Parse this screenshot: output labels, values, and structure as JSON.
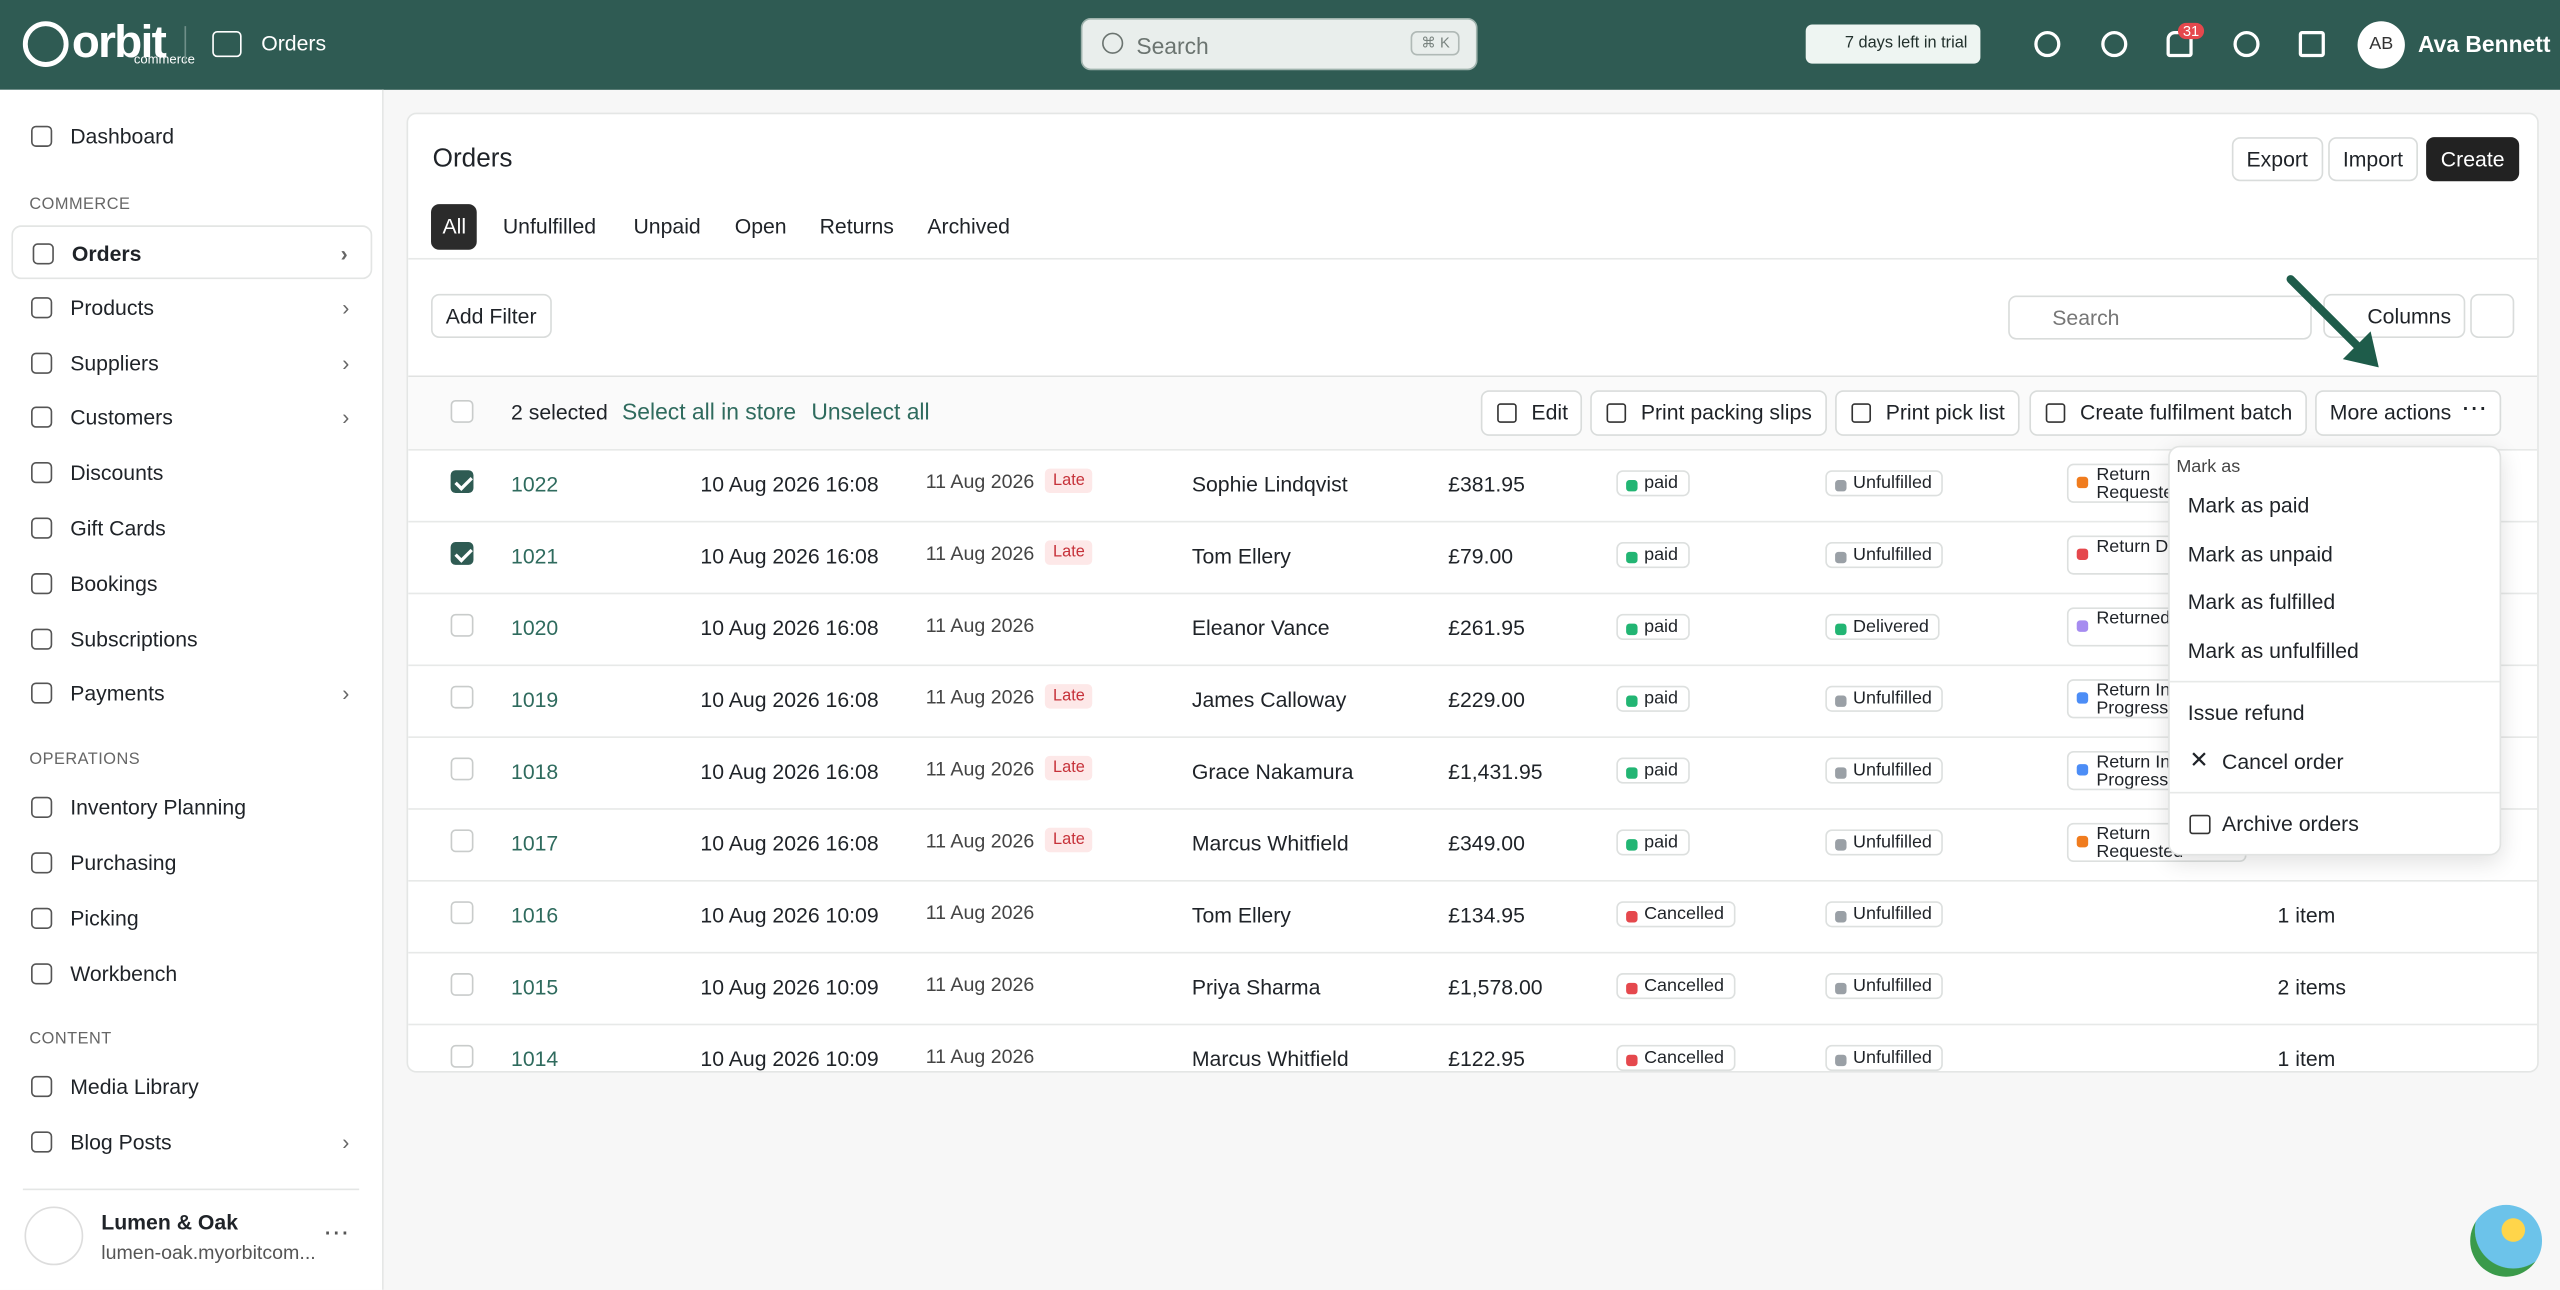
{
  "topbar": {
    "brand": "orbit",
    "brand_sub": "commerce",
    "section": "Orders",
    "search": "Search",
    "shortcut": "⌘ K",
    "trial": "7 days left in trial",
    "notifications": "31",
    "initials": "AB",
    "user": "Ava Bennett"
  },
  "sidebar": {
    "top": "Dashboard",
    "groups": [
      {
        "title": "COMMERCE",
        "items": [
          {
            "label": "Orders",
            "arrow": true,
            "active": true
          },
          {
            "label": "Products",
            "arrow": true
          },
          {
            "label": "Suppliers",
            "arrow": true
          },
          {
            "label": "Customers",
            "arrow": true
          },
          {
            "label": "Discounts"
          },
          {
            "label": "Gift Cards"
          },
          {
            "label": "Bookings"
          },
          {
            "label": "Subscriptions"
          },
          {
            "label": "Payments",
            "arrow": true
          }
        ]
      },
      {
        "title": "OPERATIONS",
        "items": [
          {
            "label": "Inventory Planning"
          },
          {
            "label": "Purchasing"
          },
          {
            "label": "Picking"
          },
          {
            "label": "Workbench"
          }
        ]
      },
      {
        "title": "CONTENT",
        "items": [
          {
            "label": "Media Library"
          },
          {
            "label": "Blog Posts",
            "arrow": true
          }
        ]
      }
    ],
    "store": {
      "name": "Lumen & Oak",
      "domain": "lumen-oak.myorbitcom..."
    }
  },
  "main": {
    "title": "Orders",
    "actions": [
      "Export",
      "Import",
      "Create"
    ],
    "tabs": [
      "All",
      "Unfulfilled",
      "Unpaid",
      "Open",
      "Returns",
      "Archived"
    ],
    "add_filter": "Add Filter",
    "search": "Search",
    "columns": "Columns",
    "bulk": {
      "selected": "2 selected",
      "select_all": "Select all in store",
      "unselect": "Unselect all",
      "buttons": [
        "Edit",
        "Print packing slips",
        "Print pick list",
        "Create fulfilment batch",
        "More actions"
      ]
    }
  },
  "table": {
    "rows": [
      {
        "number": "1022",
        "date": "10 Aug 2026 16:08",
        "due": "11 Aug 2026",
        "late": "Late",
        "customer": "Sophie Lindqvist",
        "total": "£381.95",
        "payment": "paid",
        "payment_color": "#22b573",
        "fulfillment": "Unfulfilled",
        "fulfillment_color": "#9aa0a6",
        "return": "Return Requested",
        "return_color": "#f07c1e",
        "selected": true
      },
      {
        "number": "1021",
        "date": "10 Aug 2026 16:08",
        "due": "11 Aug 2026",
        "late": "Late",
        "customer": "Tom Ellery",
        "total": "£79.00",
        "payment": "paid",
        "payment_color": "#22b573",
        "fulfillment": "Unfulfilled",
        "fulfillment_color": "#9aa0a6",
        "return": "Return D",
        "return_color": "#e5484d",
        "selected": true
      },
      {
        "number": "1020",
        "date": "10 Aug 2026 16:08",
        "due": "11 Aug 2026",
        "customer": "Eleanor Vance",
        "total": "£261.95",
        "payment": "paid",
        "payment_color": "#22b573",
        "fulfillment": "Delivered",
        "fulfillment_color": "#22b573",
        "return": "Returned",
        "return_color": "#a68cf0",
        "selected": false
      },
      {
        "number": "1019",
        "date": "10 Aug 2026 16:08",
        "due": "11 Aug 2026",
        "late": "Late",
        "customer": "James Calloway",
        "total": "£229.00",
        "payment": "paid",
        "payment_color": "#22b573",
        "fulfillment": "Unfulfilled",
        "fulfillment_color": "#9aa0a6",
        "return": "Return In Progress",
        "return_color": "#4c8df6",
        "selected": false
      },
      {
        "number": "1018",
        "date": "10 Aug 2026 16:08",
        "due": "11 Aug 2026",
        "late": "Late",
        "customer": "Grace Nakamura",
        "total": "£1,431.95",
        "payment": "paid",
        "payment_color": "#22b573",
        "fulfillment": "Unfulfilled",
        "fulfillment_color": "#9aa0a6",
        "return": "Return In Progress",
        "return_color": "#4c8df6",
        "selected": false
      },
      {
        "number": "1017",
        "date": "10 Aug 2026 16:08",
        "due": "11 Aug 2026",
        "late": "Late",
        "customer": "Marcus Whitfield",
        "total": "£349.00",
        "payment": "paid",
        "payment_color": "#22b573",
        "fulfillment": "Unfulfilled",
        "fulfillment_color": "#9aa0a6",
        "return": "Return Requested",
        "return_color": "#f07c1e",
        "selected": false
      },
      {
        "number": "1016",
        "date": "10 Aug 2026 10:09",
        "due": "11 Aug 2026",
        "customer": "Tom Ellery",
        "total": "£134.95",
        "payment": "Cancelled",
        "payment_color": "#e5484d",
        "fulfillment": "Unfulfilled",
        "fulfillment_color": "#9aa0a6",
        "items": "1 item",
        "selected": false
      },
      {
        "number": "1015",
        "date": "10 Aug 2026 10:09",
        "due": "11 Aug 2026",
        "customer": "Priya Sharma",
        "total": "£1,578.00",
        "payment": "Cancelled",
        "payment_color": "#e5484d",
        "fulfillment": "Unfulfilled",
        "fulfillment_color": "#9aa0a6",
        "items": "2 items",
        "selected": false
      },
      {
        "number": "1014",
        "date": "10 Aug 2026 10:09",
        "due": "11 Aug 2026",
        "customer": "Marcus Whitfield",
        "total": "£122.95",
        "payment": "Cancelled",
        "payment_color": "#e5484d",
        "fulfillment": "Unfulfilled",
        "fulfillment_color": "#9aa0a6",
        "items": "1 item",
        "selected": false
      }
    ]
  },
  "menu": {
    "header": "Mark as",
    "mark": [
      "Mark as paid",
      "Mark as unpaid",
      "Mark as fulfilled",
      "Mark as unfulfilled"
    ],
    "refund": "Issue refund",
    "cancel": "Cancel order",
    "archive": "Archive orders"
  }
}
